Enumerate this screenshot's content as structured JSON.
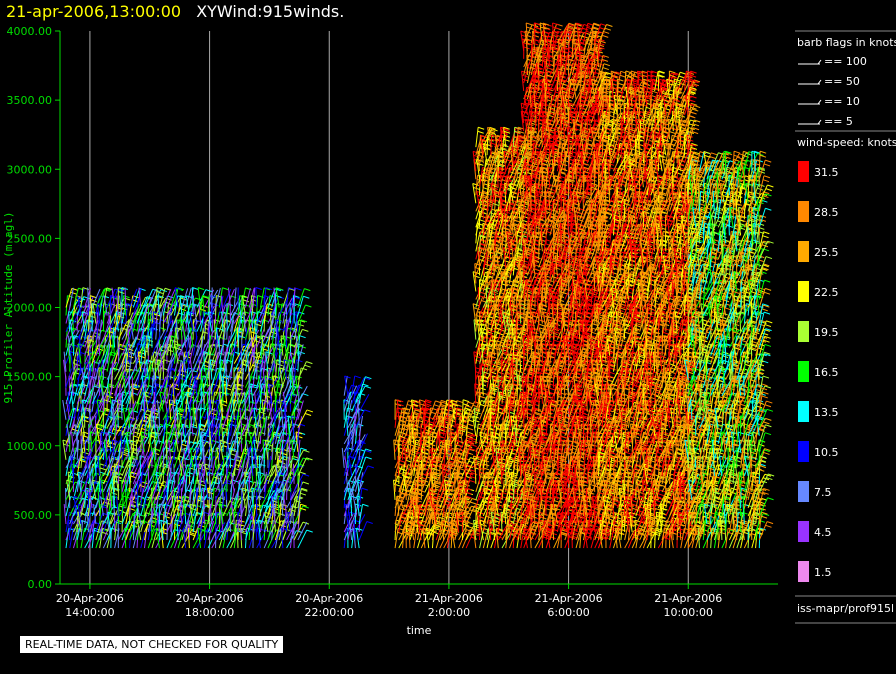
{
  "header": {
    "datetime": "21-apr-2006,13:00:00",
    "product": "XYWind:915winds."
  },
  "footer": {
    "disclaimer": "REAL-TIME DATA, NOT CHECKED FOR QUALITY"
  },
  "legend": {
    "barb_title": "barb flags in knots",
    "barb_entries": [
      "== 100",
      "== 50",
      "== 10",
      "== 5"
    ],
    "speed_title": "wind-speed: knots",
    "source": "iss-mapr/prof915l"
  },
  "colors": {
    "axis": "#00dd00",
    "grid": "#aaaaaa",
    "scale": [
      "#ff0000",
      "#ff8800",
      "#ffaa00",
      "#ffff00",
      "#aaff33",
      "#00ff00",
      "#00ffff",
      "#0000ff",
      "#6688ff",
      "#9933ff",
      "#ee88ee"
    ]
  },
  "chart_data": {
    "type": "wind-barb profile",
    "title": "21-apr-2006,13:00:00  XYWind:915winds.",
    "xlabel": "time",
    "ylabel": "915 Profiler Altitude (m agl)",
    "ylim": [
      0,
      4000
    ],
    "yticks": [
      "0.00",
      "500.00",
      "1000.00",
      "1500.00",
      "2000.00",
      "2500.00",
      "3000.00",
      "3500.00",
      "4000.00"
    ],
    "xticks": [
      {
        "date": "20-Apr-2006",
        "time": "14:00:00"
      },
      {
        "date": "20-Apr-2006",
        "time": "18:00:00"
      },
      {
        "date": "20-Apr-2006",
        "time": "22:00:00"
      },
      {
        "date": "21-Apr-2006",
        "time": "2:00:00"
      },
      {
        "date": "21-Apr-2006",
        "time": "6:00:00"
      },
      {
        "date": "21-Apr-2006",
        "time": "10:00:00"
      }
    ],
    "xtick_hours": [
      14,
      18,
      22,
      26,
      30,
      34
    ],
    "xlim_hours": [
      13.0,
      37.0
    ],
    "grid": "vertical",
    "speed_levels": [
      "31.5",
      "28.5",
      "25.5",
      "22.5",
      "19.5",
      "16.5",
      "13.5",
      "10.5",
      "7.5",
      "4.5",
      "1.5"
    ],
    "profiles": [
      {
        "start_hour": 13.2,
        "end_hour": 21.0,
        "top_m": 2000,
        "speed_range": [
          3,
          22
        ]
      },
      {
        "start_hour": 22.5,
        "end_hour": 23.0,
        "top_m": 1400,
        "speed_range": [
          5,
          15
        ]
      },
      {
        "start_hour": 24.2,
        "end_hour": 26.6,
        "top_m": 1200,
        "speed_range": [
          22,
          32
        ]
      },
      {
        "start_hour": 26.9,
        "end_hour": 28.5,
        "top_m": 3200,
        "speed_range": [
          20,
          33
        ]
      },
      {
        "start_hour": 28.5,
        "end_hour": 31.0,
        "top_m": 3950,
        "speed_range": [
          25,
          34
        ]
      },
      {
        "start_hour": 31.0,
        "end_hour": 34.0,
        "top_m": 3600,
        "speed_range": [
          22,
          33
        ]
      },
      {
        "start_hour": 34.0,
        "end_hour": 36.4,
        "top_m": 3000,
        "speed_range": [
          12,
          30
        ]
      }
    ]
  }
}
